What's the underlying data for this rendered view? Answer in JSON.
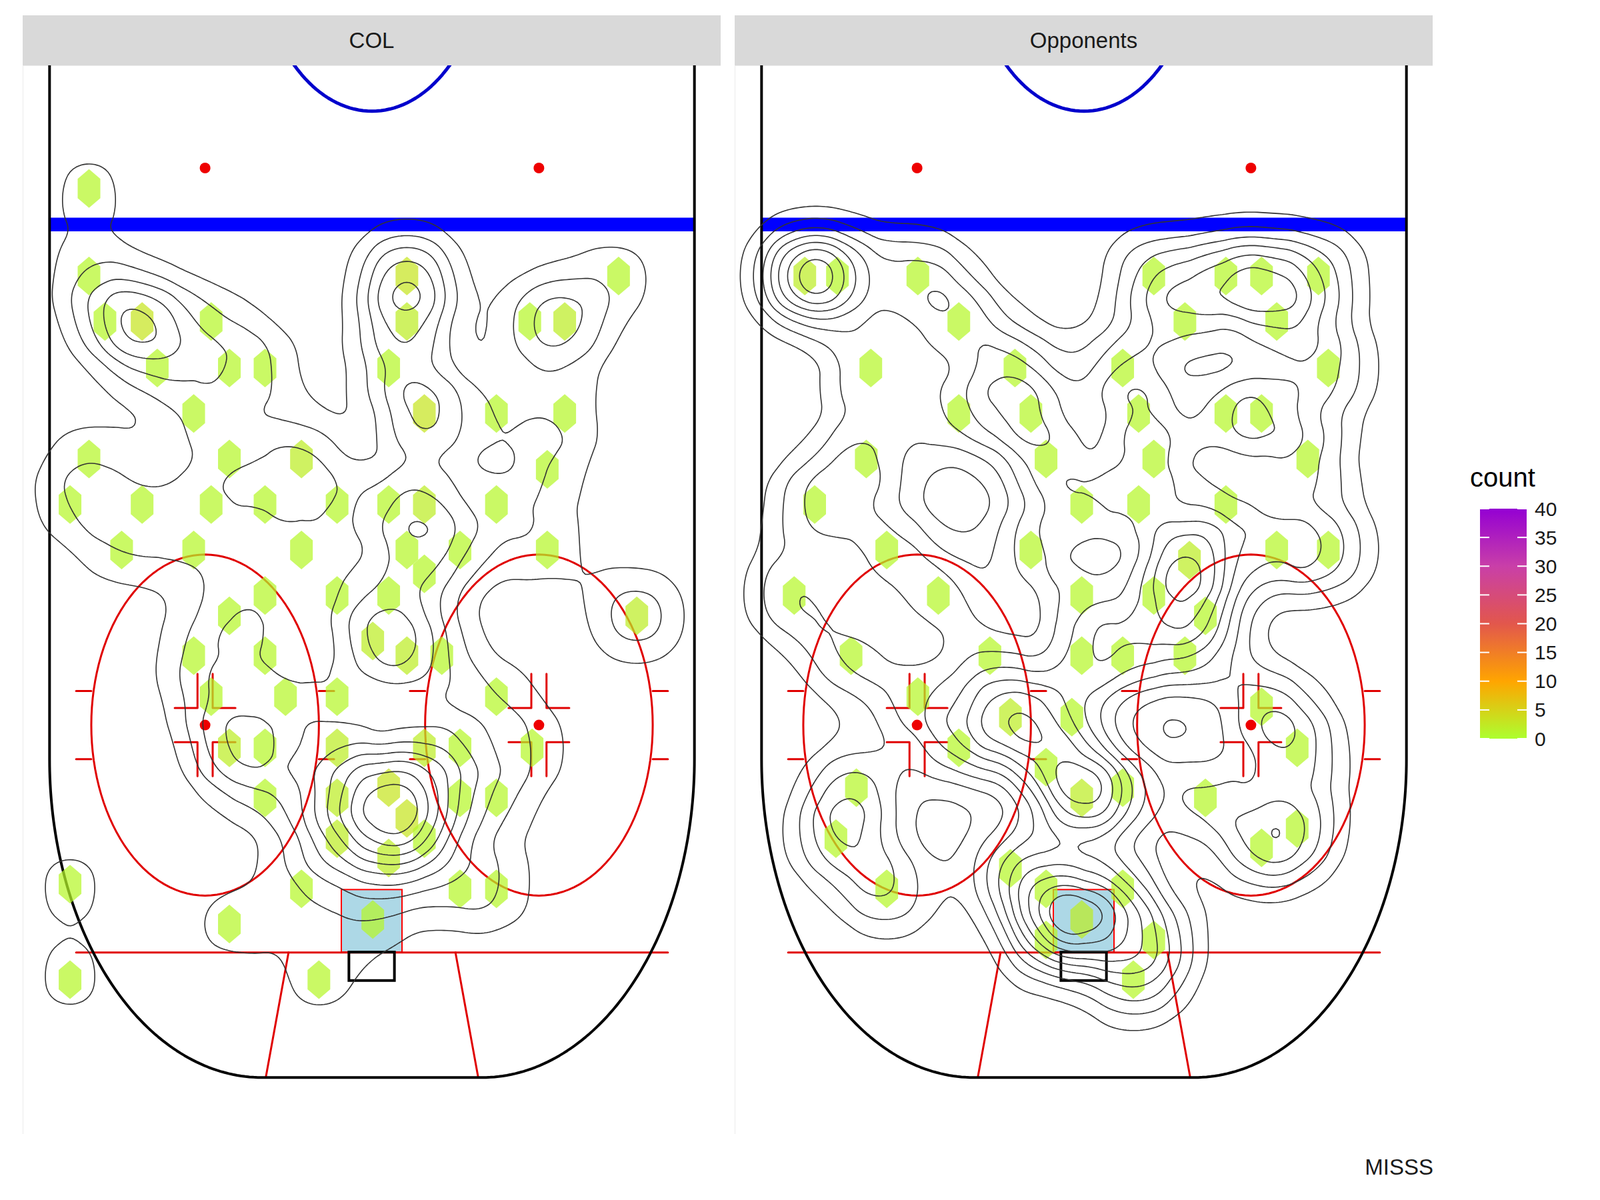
{
  "chart_data": {
    "type": "hexbin",
    "caption": "MISSS",
    "xlim": [
      -46,
      46
    ],
    "ylim": [
      11,
      105
    ],
    "tick_labels": false,
    "color_scale": {
      "title": "count",
      "range": [
        0,
        40
      ],
      "ticks": [
        0,
        5,
        10,
        15,
        20,
        25,
        30,
        35,
        40
      ]
    },
    "facets": [
      {
        "name": "COL",
        "cells": [
          {
            "x": -37.3,
            "y": 21.8,
            "count": 1
          },
          {
            "x": -37.3,
            "y": 29.5,
            "count": 1
          },
          {
            "x": -35.2,
            "y": 33.5,
            "count": 1
          },
          {
            "x": -30.3,
            "y": 33.5,
            "count": 3
          },
          {
            "x": -21.2,
            "y": 33.5,
            "count": 1
          },
          {
            "x": 4.6,
            "y": 29.5,
            "count": 3
          },
          {
            "x": 4.6,
            "y": 33.5,
            "count": 2
          },
          {
            "x": 20.8,
            "y": 33.5,
            "count": 1
          },
          {
            "x": 25.4,
            "y": 33.5,
            "count": 2
          },
          {
            "x": 32.5,
            "y": 29.5,
            "count": 1
          },
          {
            "x": -28.3,
            "y": 37.6,
            "count": 1
          },
          {
            "x": -18.8,
            "y": 37.6,
            "count": 1
          },
          {
            "x": -14.1,
            "y": 37.6,
            "count": 1
          },
          {
            "x": 2.2,
            "y": 37.6,
            "count": 1
          },
          {
            "x": 6.9,
            "y": 41.6,
            "count": 3
          },
          {
            "x": 16.4,
            "y": 41.6,
            "count": 1
          },
          {
            "x": 25.4,
            "y": 41.6,
            "count": 1
          },
          {
            "x": -37.3,
            "y": 45.6,
            "count": 1
          },
          {
            "x": -23.5,
            "y": 41.6,
            "count": 1
          },
          {
            "x": -18.8,
            "y": 45.6,
            "count": 1
          },
          {
            "x": -9.3,
            "y": 45.6,
            "count": 2
          },
          {
            "x": -30.3,
            "y": 49.6,
            "count": 1
          },
          {
            "x": -21.2,
            "y": 49.6,
            "count": 1
          },
          {
            "x": -14.1,
            "y": 49.6,
            "count": 1
          },
          {
            "x": -4.6,
            "y": 49.6,
            "count": 1
          },
          {
            "x": 2.2,
            "y": 49.6,
            "count": 1
          },
          {
            "x": 6.9,
            "y": 49.6,
            "count": 2
          },
          {
            "x": 16.4,
            "y": 49.6,
            "count": 1
          },
          {
            "x": 23.1,
            "y": 46.5,
            "count": 1
          },
          {
            "x": -39.8,
            "y": 49.6,
            "count": 1
          },
          {
            "x": -33.0,
            "y": 53.6,
            "count": 1
          },
          {
            "x": -23.5,
            "y": 53.6,
            "count": 1
          },
          {
            "x": -9.3,
            "y": 53.6,
            "count": 1
          },
          {
            "x": 4.6,
            "y": 53.6,
            "count": 1
          },
          {
            "x": 11.6,
            "y": 53.6,
            "count": 1
          },
          {
            "x": 23.1,
            "y": 53.6,
            "count": 1
          },
          {
            "x": -14.1,
            "y": 57.6,
            "count": 1
          },
          {
            "x": -4.6,
            "y": 57.6,
            "count": 1
          },
          {
            "x": 2.2,
            "y": 57.6,
            "count": 1
          },
          {
            "x": 6.9,
            "y": 55.7,
            "count": 1
          },
          {
            "x": -18.8,
            "y": 59.4,
            "count": 1
          },
          {
            "x": 34.9,
            "y": 59.4,
            "count": 2
          },
          {
            "x": -23.5,
            "y": 62.9,
            "count": 1
          },
          {
            "x": -14.1,
            "y": 62.9,
            "count": 1
          },
          {
            "x": 0.1,
            "y": 61.6,
            "count": 2
          },
          {
            "x": 4.6,
            "y": 62.9,
            "count": 2
          },
          {
            "x": 9.2,
            "y": 62.9,
            "count": 1
          },
          {
            "x": -21.2,
            "y": 66.5,
            "count": 1
          },
          {
            "x": -11.4,
            "y": 66.5,
            "count": 1
          },
          {
            "x": -4.6,
            "y": 66.5,
            "count": 1
          },
          {
            "x": 16.4,
            "y": 66.5,
            "count": 1
          },
          {
            "x": -18.8,
            "y": 71.0,
            "count": 2
          },
          {
            "x": -14.1,
            "y": 71.0,
            "count": 1
          },
          {
            "x": -4.6,
            "y": 71.0,
            "count": 2
          },
          {
            "x": 2.2,
            "y": 74.5,
            "count": 3
          },
          {
            "x": 6.9,
            "y": 71.0,
            "count": 2
          },
          {
            "x": 11.6,
            "y": 71.0,
            "count": 1
          },
          {
            "x": 21.1,
            "y": 71.0,
            "count": 1
          },
          {
            "x": -14.1,
            "y": 75.4,
            "count": 1
          },
          {
            "x": -4.6,
            "y": 75.4,
            "count": 2
          },
          {
            "x": 4.6,
            "y": 77.2,
            "count": 3
          },
          {
            "x": 11.6,
            "y": 75.4,
            "count": 1
          },
          {
            "x": 16.4,
            "y": 75.4,
            "count": 1
          },
          {
            "x": -4.6,
            "y": 79.0,
            "count": 2
          },
          {
            "x": 2.2,
            "y": 80.7,
            "count": 2
          },
          {
            "x": 6.9,
            "y": 79.0,
            "count": 1
          },
          {
            "x": -9.3,
            "y": 83.4,
            "count": 1
          },
          {
            "x": -7.0,
            "y": 91.4,
            "count": 1
          },
          {
            "x": -18.8,
            "y": 86.5,
            "count": 1
          },
          {
            "x": -39.8,
            "y": 83.0,
            "count": 1
          },
          {
            "x": -39.8,
            "y": 91.4,
            "count": 1
          },
          {
            "x": 0.1,
            "y": 86.1,
            "count": 1
          },
          {
            "x": 11.6,
            "y": 83.4,
            "count": 1
          },
          {
            "x": 16.4,
            "y": 83.4,
            "count": 1
          }
        ]
      },
      {
        "name": "Opponents",
        "cells": [
          {
            "x": -36.8,
            "y": 29.5,
            "count": 2
          },
          {
            "x": -32.5,
            "y": 29.5,
            "count": 1
          },
          {
            "x": -21.9,
            "y": 29.5,
            "count": 1
          },
          {
            "x": 9.2,
            "y": 29.5,
            "count": 1
          },
          {
            "x": 18.7,
            "y": 29.5,
            "count": 1
          },
          {
            "x": 23.4,
            "y": 29.5,
            "count": 1
          },
          {
            "x": 30.9,
            "y": 29.5,
            "count": 1
          },
          {
            "x": -28.1,
            "y": 37.6,
            "count": 1
          },
          {
            "x": -16.5,
            "y": 33.5,
            "count": 1
          },
          {
            "x": -9.1,
            "y": 37.6,
            "count": 1
          },
          {
            "x": 5.1,
            "y": 37.6,
            "count": 1
          },
          {
            "x": 13.3,
            "y": 33.5,
            "count": 1
          },
          {
            "x": 25.4,
            "y": 33.5,
            "count": 1
          },
          {
            "x": 32.2,
            "y": 37.6,
            "count": 1
          },
          {
            "x": -16.5,
            "y": 41.6,
            "count": 1
          },
          {
            "x": -7.0,
            "y": 41.6,
            "count": 1
          },
          {
            "x": 7.2,
            "y": 41.6,
            "count": 1
          },
          {
            "x": 18.7,
            "y": 41.6,
            "count": 1
          },
          {
            "x": 23.4,
            "y": 41.6,
            "count": 1
          },
          {
            "x": -28.7,
            "y": 45.6,
            "count": 1
          },
          {
            "x": -5.0,
            "y": 45.6,
            "count": 1
          },
          {
            "x": 9.2,
            "y": 45.6,
            "count": 1
          },
          {
            "x": 29.5,
            "y": 45.6,
            "count": 1
          },
          {
            "x": -35.5,
            "y": 49.6,
            "count": 1
          },
          {
            "x": -0.3,
            "y": 49.6,
            "count": 1
          },
          {
            "x": 7.2,
            "y": 49.6,
            "count": 1
          },
          {
            "x": 18.7,
            "y": 49.6,
            "count": 1
          },
          {
            "x": -26.0,
            "y": 53.6,
            "count": 1
          },
          {
            "x": -7.0,
            "y": 53.6,
            "count": 1
          },
          {
            "x": 13.9,
            "y": 54.5,
            "count": 2
          },
          {
            "x": 25.4,
            "y": 53.6,
            "count": 1
          },
          {
            "x": 32.2,
            "y": 53.6,
            "count": 1
          },
          {
            "x": -38.2,
            "y": 57.6,
            "count": 1
          },
          {
            "x": -19.2,
            "y": 57.6,
            "count": 1
          },
          {
            "x": -0.3,
            "y": 57.6,
            "count": 1
          },
          {
            "x": 9.2,
            "y": 57.6,
            "count": 1
          },
          {
            "x": 16.0,
            "y": 59.4,
            "count": 1
          },
          {
            "x": -30.7,
            "y": 62.9,
            "count": 1
          },
          {
            "x": -12.4,
            "y": 62.9,
            "count": 1
          },
          {
            "x": -0.3,
            "y": 62.9,
            "count": 1
          },
          {
            "x": 5.1,
            "y": 62.9,
            "count": 1
          },
          {
            "x": 13.3,
            "y": 62.9,
            "count": 1
          },
          {
            "x": -21.9,
            "y": 66.5,
            "count": 1
          },
          {
            "x": -9.7,
            "y": 68.3,
            "count": 2
          },
          {
            "x": -1.6,
            "y": 68.3,
            "count": 1
          },
          {
            "x": 28.1,
            "y": 71.0,
            "count": 1
          },
          {
            "x": 23.4,
            "y": 67.4,
            "count": 1
          },
          {
            "x": -30.0,
            "y": 74.5,
            "count": 1
          },
          {
            "x": -16.5,
            "y": 71.0,
            "count": 1
          },
          {
            "x": -5.0,
            "y": 72.7,
            "count": 1
          },
          {
            "x": -0.3,
            "y": 75.4,
            "count": 2
          },
          {
            "x": 5.1,
            "y": 74.5,
            "count": 1
          },
          {
            "x": 16.0,
            "y": 75.4,
            "count": 1
          },
          {
            "x": -32.7,
            "y": 79.0,
            "count": 1
          },
          {
            "x": -26.0,
            "y": 83.4,
            "count": 1
          },
          {
            "x": 28.1,
            "y": 78.1,
            "count": 1
          },
          {
            "x": 23.4,
            "y": 79.8,
            "count": 1
          },
          {
            "x": -9.7,
            "y": 81.6,
            "count": 1
          },
          {
            "x": -5.0,
            "y": 83.4,
            "count": 1
          },
          {
            "x": 5.1,
            "y": 83.4,
            "count": 1
          },
          {
            "x": -0.3,
            "y": 86.1,
            "count": 2
          },
          {
            "x": -5.0,
            "y": 87.9,
            "count": 1
          },
          {
            "x": 6.5,
            "y": 91.4,
            "count": 1
          },
          {
            "x": 9.2,
            "y": 87.9,
            "count": 1
          }
        ]
      }
    ]
  }
}
